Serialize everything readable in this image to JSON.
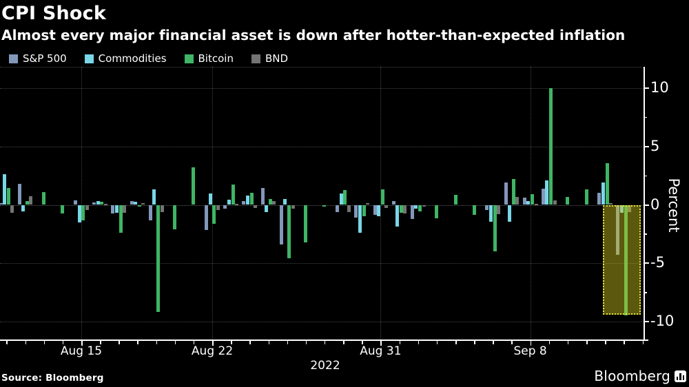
{
  "header": {
    "title": "CPI Shock",
    "subtitle": "Almost every major financial asset is down after hotter-than-expected inflation"
  },
  "legend": [
    {
      "key": "sp500",
      "label": "S&P 500",
      "color": "#8397bb"
    },
    {
      "key": "commodities",
      "label": "Commodities",
      "color": "#79d6e6"
    },
    {
      "key": "bitcoin",
      "label": "Bitcoin",
      "color": "#3fb565"
    },
    {
      "key": "bnd",
      "label": "BND",
      "color": "#747474"
    }
  ],
  "chart_data": {
    "type": "bar",
    "title": "CPI Shock",
    "ylabel": "Percent",
    "unit": "percent (daily change)",
    "ylim": [
      -11.5,
      11.8
    ],
    "yticks_major": [
      10,
      5,
      0,
      -5,
      -10
    ],
    "yticks_minor": [
      7.5,
      2.5,
      -2.5,
      -7.5
    ],
    "grid": "dotted",
    "x_axis_year": "2022",
    "xticks": [
      {
        "label": "Aug 15",
        "month": 8,
        "day": 15
      },
      {
        "label": "Aug 22",
        "month": 8,
        "day": 22
      },
      {
        "label": "Aug 31",
        "month": 8,
        "day": 31
      },
      {
        "label": "Sep 8",
        "month": 9,
        "day": 8
      }
    ],
    "series_names": [
      "S&P 500",
      "Commodities",
      "Bitcoin",
      "BND"
    ],
    "days": [
      {
        "month": 8,
        "day": 11,
        "sp500": 0.15,
        "commodities": 2.6,
        "bitcoin": 1.45,
        "bnd": -0.65
      },
      {
        "month": 8,
        "day": 12,
        "sp500": 1.8,
        "commodities": -0.55,
        "bitcoin": 0.35,
        "bnd": 0.75
      },
      {
        "month": 8,
        "day": 13,
        "sp500": null,
        "commodities": null,
        "bitcoin": 1.1,
        "bnd": null
      },
      {
        "month": 8,
        "day": 14,
        "sp500": null,
        "commodities": null,
        "bitcoin": -0.75,
        "bnd": null
      },
      {
        "month": 8,
        "day": 15,
        "sp500": 0.4,
        "commodities": -1.5,
        "bitcoin": -1.3,
        "bnd": -0.45
      },
      {
        "month": 8,
        "day": 16,
        "sp500": 0.2,
        "commodities": 0.3,
        "bitcoin": 0.25,
        "bnd": 0.1
      },
      {
        "month": 8,
        "day": 17,
        "sp500": -0.75,
        "commodities": -0.65,
        "bitcoin": -2.4,
        "bnd": -0.7
      },
      {
        "month": 8,
        "day": 18,
        "sp500": 0.35,
        "commodities": 0.25,
        "bitcoin": -0.1,
        "bnd": 0.15
      },
      {
        "month": 8,
        "day": 19,
        "sp500": -1.35,
        "commodities": 1.3,
        "bitcoin": -9.2,
        "bnd": -0.6
      },
      {
        "month": 8,
        "day": 20,
        "sp500": null,
        "commodities": null,
        "bitcoin": -2.1,
        "bnd": null
      },
      {
        "month": 8,
        "day": 21,
        "sp500": null,
        "commodities": null,
        "bitcoin": 3.2,
        "bnd": null
      },
      {
        "month": 8,
        "day": 22,
        "sp500": -2.15,
        "commodities": 1.0,
        "bitcoin": -1.6,
        "bnd": -0.45
      },
      {
        "month": 8,
        "day": 23,
        "sp500": -0.3,
        "commodities": 0.45,
        "bitcoin": 1.75,
        "bnd": 0.1
      },
      {
        "month": 8,
        "day": 24,
        "sp500": 0.3,
        "commodities": 0.8,
        "bitcoin": 1.05,
        "bnd": -0.25
      },
      {
        "month": 8,
        "day": 25,
        "sp500": 1.45,
        "commodities": -0.6,
        "bitcoin": 0.5,
        "bnd": 0.3
      },
      {
        "month": 8,
        "day": 26,
        "sp500": -3.4,
        "commodities": 0.5,
        "bitcoin": -4.6,
        "bnd": -0.3
      },
      {
        "month": 8,
        "day": 27,
        "sp500": null,
        "commodities": null,
        "bitcoin": -3.2,
        "bnd": null
      },
      {
        "month": 8,
        "day": 28,
        "sp500": null,
        "commodities": null,
        "bitcoin": -0.1,
        "bnd": null
      },
      {
        "month": 8,
        "day": 29,
        "sp500": -0.6,
        "commodities": 1.0,
        "bitcoin": 1.25,
        "bnd": -0.6
      },
      {
        "month": 8,
        "day": 30,
        "sp500": -1.1,
        "commodities": -2.4,
        "bitcoin": -1.0,
        "bnd": 0.15
      },
      {
        "month": 8,
        "day": 31,
        "sp500": -0.85,
        "commodities": -0.95,
        "bitcoin": 1.3,
        "bnd": -0.25
      },
      {
        "month": 9,
        "day": 1,
        "sp500": 0.3,
        "commodities": -1.85,
        "bitcoin": -0.7,
        "bnd": -0.75
      },
      {
        "month": 9,
        "day": 2,
        "sp500": -1.2,
        "commodities": -0.35,
        "bitcoin": -0.55,
        "bnd": -0.1
      },
      {
        "month": 9,
        "day": 3,
        "sp500": null,
        "commodities": null,
        "bitcoin": -1.15,
        "bnd": null
      },
      {
        "month": 9,
        "day": 4,
        "sp500": null,
        "commodities": null,
        "bitcoin": 0.85,
        "bnd": null
      },
      {
        "month": 9,
        "day": 5,
        "sp500": null,
        "commodities": null,
        "bitcoin": -0.85,
        "bnd": null
      },
      {
        "month": 9,
        "day": 6,
        "sp500": -0.45,
        "commodities": -1.45,
        "bitcoin": -4.0,
        "bnd": -0.8
      },
      {
        "month": 9,
        "day": 7,
        "sp500": 1.9,
        "commodities": -1.45,
        "bitcoin": 2.2,
        "bnd": 0.65
      },
      {
        "month": 9,
        "day": 8,
        "sp500": 0.6,
        "commodities": 0.35,
        "bitcoin": 0.9,
        "bnd": 0.1
      },
      {
        "month": 9,
        "day": 9,
        "sp500": 1.4,
        "commodities": 2.1,
        "bitcoin": 10.0,
        "bnd": 0.4
      },
      {
        "month": 9,
        "day": 10,
        "sp500": null,
        "commodities": null,
        "bitcoin": 0.7,
        "bnd": null
      },
      {
        "month": 9,
        "day": 11,
        "sp500": null,
        "commodities": null,
        "bitcoin": 1.3,
        "bnd": null
      },
      {
        "month": 9,
        "day": 12,
        "sp500": 1.05,
        "commodities": 1.9,
        "bitcoin": 3.6,
        "bnd": 0.15
      },
      {
        "month": 9,
        "day": 13,
        "sp500": -4.3,
        "commodities": -0.65,
        "bitcoin": -9.5,
        "bnd": -0.6
      }
    ],
    "highlight": {
      "description": "CPI-shock selloff region (Sep 13)",
      "start": {
        "month": 9,
        "day": 11.9
      },
      "end": {
        "month": 9,
        "day": 13.9
      },
      "from_value": 0,
      "to_value": -9.4,
      "fill": "rgba(205,198,31,0.45)",
      "border_color": "#e8e33d"
    }
  },
  "footer": {
    "source": "Source: Bloomberg",
    "brand": "Bloomberg"
  }
}
